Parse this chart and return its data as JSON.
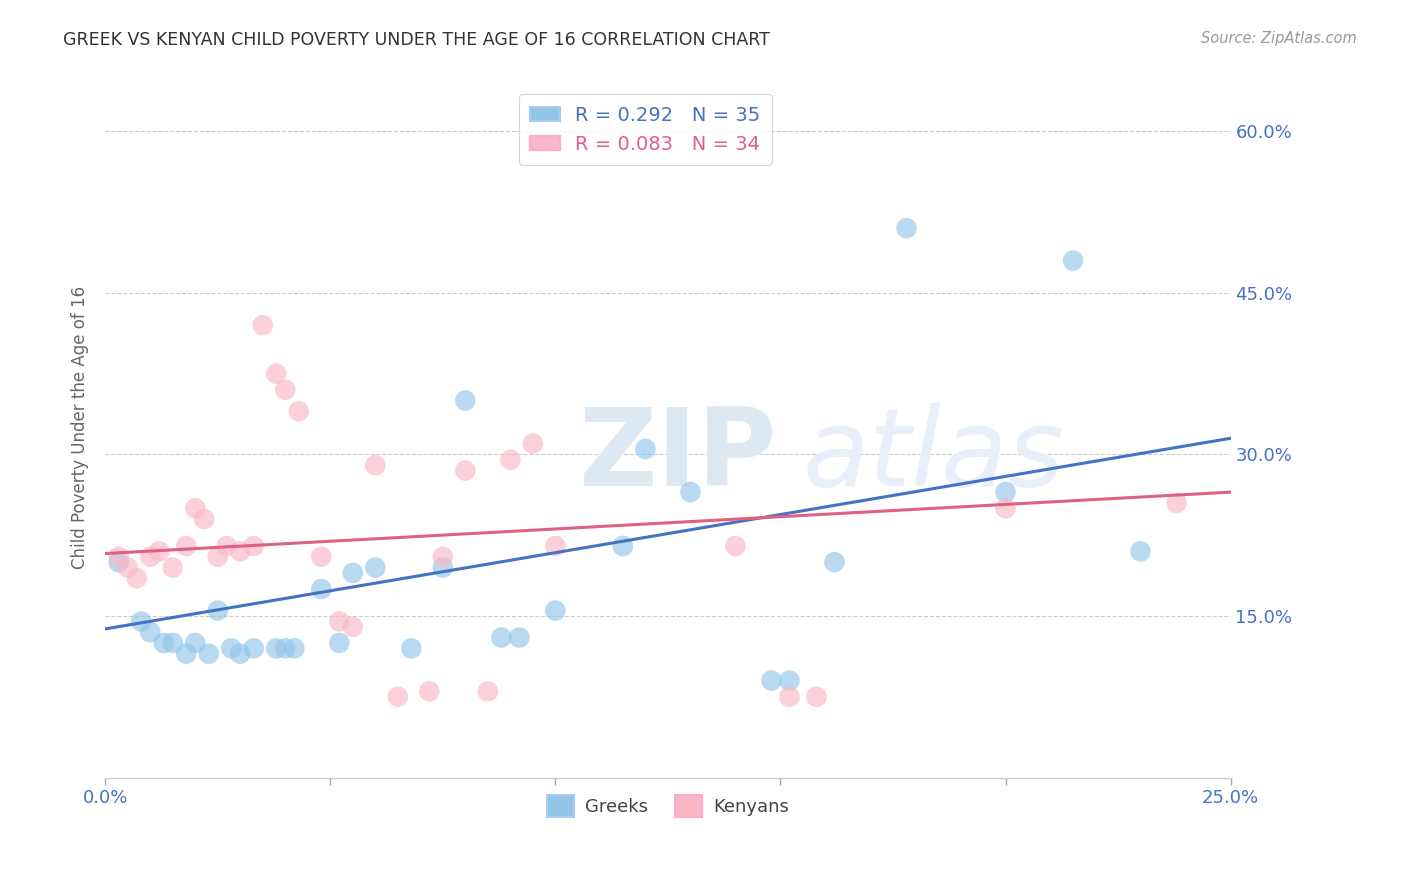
{
  "title": "GREEK VS KENYAN CHILD POVERTY UNDER THE AGE OF 16 CORRELATION CHART",
  "source": "Source: ZipAtlas.com",
  "ylabel": "Child Poverty Under the Age of 16",
  "xlim": [
    0.0,
    0.25
  ],
  "ylim": [
    0.0,
    0.65
  ],
  "xticks": [
    0.0,
    0.05,
    0.1,
    0.15,
    0.2,
    0.25
  ],
  "yticks": [
    0.15,
    0.3,
    0.45,
    0.6
  ],
  "ytick_labels": [
    "15.0%",
    "30.0%",
    "45.0%",
    "60.0%"
  ],
  "xtick_labels": [
    "0.0%",
    "",
    "",
    "",
    "",
    "25.0%"
  ],
  "greeks_R": "0.292",
  "greeks_N": "35",
  "kenyans_R": "0.083",
  "kenyans_N": "34",
  "greek_color": "#92C5E8",
  "kenyan_color": "#F9B8C8",
  "greek_line_color": "#4472C4",
  "kenyan_line_color": "#E06080",
  "tick_color": "#4472C4",
  "background_color": "#FFFFFF",
  "greek_x": [
    0.003,
    0.008,
    0.01,
    0.013,
    0.015,
    0.018,
    0.02,
    0.023,
    0.025,
    0.028,
    0.03,
    0.033,
    0.038,
    0.04,
    0.042,
    0.048,
    0.052,
    0.055,
    0.06,
    0.068,
    0.075,
    0.08,
    0.088,
    0.092,
    0.1,
    0.115,
    0.12,
    0.13,
    0.148,
    0.152,
    0.162,
    0.178,
    0.2,
    0.215,
    0.23
  ],
  "greek_y": [
    0.2,
    0.145,
    0.135,
    0.125,
    0.125,
    0.115,
    0.125,
    0.115,
    0.155,
    0.12,
    0.115,
    0.12,
    0.12,
    0.12,
    0.12,
    0.175,
    0.125,
    0.19,
    0.195,
    0.12,
    0.195,
    0.35,
    0.13,
    0.13,
    0.155,
    0.215,
    0.305,
    0.265,
    0.09,
    0.09,
    0.2,
    0.51,
    0.265,
    0.48,
    0.21
  ],
  "kenyan_x": [
    0.003,
    0.005,
    0.007,
    0.01,
    0.012,
    0.015,
    0.018,
    0.02,
    0.022,
    0.025,
    0.027,
    0.03,
    0.033,
    0.035,
    0.038,
    0.04,
    0.043,
    0.048,
    0.052,
    0.055,
    0.06,
    0.065,
    0.072,
    0.075,
    0.08,
    0.085,
    0.09,
    0.095,
    0.1,
    0.14,
    0.152,
    0.158,
    0.2,
    0.238
  ],
  "kenyan_y": [
    0.205,
    0.195,
    0.185,
    0.205,
    0.21,
    0.195,
    0.215,
    0.25,
    0.24,
    0.205,
    0.215,
    0.21,
    0.215,
    0.42,
    0.375,
    0.36,
    0.34,
    0.205,
    0.145,
    0.14,
    0.29,
    0.075,
    0.08,
    0.205,
    0.285,
    0.08,
    0.295,
    0.31,
    0.215,
    0.215,
    0.075,
    0.075,
    0.25,
    0.255
  ],
  "greek_trendline_x": [
    0.0,
    0.25
  ],
  "greek_trendline_y": [
    0.138,
    0.315
  ],
  "kenyan_trendline_x": [
    0.0,
    0.25
  ],
  "kenyan_trendline_y": [
    0.208,
    0.265
  ]
}
